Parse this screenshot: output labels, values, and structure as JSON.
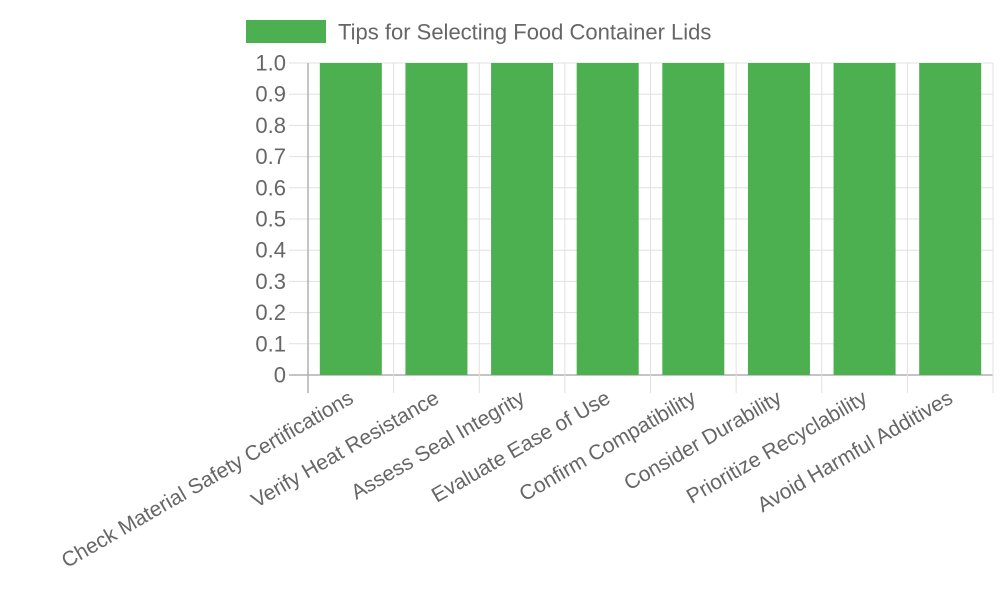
{
  "chart_data": {
    "type": "bar",
    "categories": [
      "Check Material Safety Certifications",
      "Verify Heat Resistance",
      "Assess Seal Integrity",
      "Evaluate Ease of Use",
      "Confirm Compatibility",
      "Consider Durability",
      "Prioritize Recyclability",
      "Avoid Harmful Additives"
    ],
    "series": [
      {
        "name": "Tips for Selecting Food Container Lids",
        "values": [
          1,
          1,
          1,
          1,
          1,
          1,
          1,
          1
        ]
      }
    ],
    "ylim": [
      0,
      1.0
    ],
    "yticks": [
      "0",
      "0.1",
      "0.2",
      "0.3",
      "0.4",
      "0.5",
      "0.6",
      "0.7",
      "0.8",
      "0.9",
      "1.0"
    ],
    "grid": true,
    "legend": "top",
    "colors": {
      "bar": "#4caf50",
      "grid": "#e0e0e0",
      "axis": "#b0b0b0",
      "text": "#666666"
    }
  }
}
